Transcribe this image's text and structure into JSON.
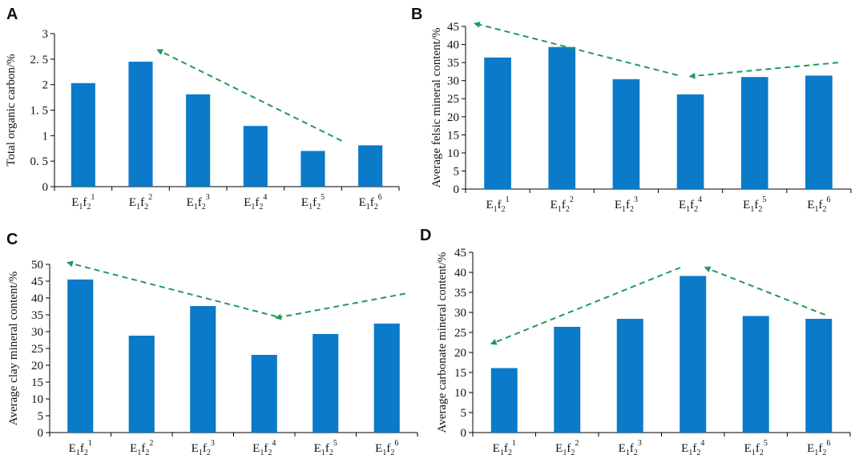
{
  "figure": {
    "panels": [
      "A",
      "B",
      "C",
      "D"
    ]
  },
  "chart_data": [
    {
      "panel": "A",
      "type": "bar",
      "categories": [
        "E1f2^1",
        "E1f2^2",
        "E1f2^3",
        "E1f2^4",
        "E1f2^5",
        "E1f2^6"
      ],
      "values": [
        2.03,
        2.45,
        1.81,
        1.19,
        0.7,
        0.81
      ],
      "title": "",
      "xlabel": "",
      "ylabel": "Total organic carbon/%",
      "ylim": [
        0,
        3
      ],
      "yticks": [
        "0",
        "0. 5",
        "1",
        "1. 5",
        "2",
        "2. 5",
        "3"
      ],
      "ytick_values": [
        0,
        0.5,
        1,
        1.5,
        2,
        2.5,
        3
      ],
      "grid": false,
      "trend_arrows": [
        {
          "from": [
            4.5,
            0.9
          ],
          "to": [
            1.3,
            2.68
          ]
        }
      ],
      "bar_color": "#0a7ac9",
      "trend_color": "#1f9a5a"
    },
    {
      "panel": "B",
      "type": "bar",
      "categories": [
        "E1f2^1",
        "E1f2^2",
        "E1f2^3",
        "E1f2^4",
        "E1f2^5",
        "E1f2^6"
      ],
      "values": [
        36.4,
        39.3,
        30.4,
        26.2,
        31.0,
        31.4
      ],
      "title": "",
      "xlabel": "",
      "ylabel": "Average felsic mineral content/%",
      "ylim": [
        0,
        45
      ],
      "yticks": [
        "0",
        "5",
        "10",
        "15",
        "20",
        "25",
        "30",
        "35",
        "40",
        "45"
      ],
      "ytick_values": [
        0,
        5,
        10,
        15,
        20,
        25,
        30,
        35,
        40,
        45
      ],
      "grid": false,
      "trend_arrows": [
        {
          "from": [
            2.8,
            31.5
          ],
          "to": [
            -0.35,
            45.8
          ]
        },
        {
          "from": [
            5.3,
            35.0
          ],
          "to": [
            3.0,
            31.2
          ]
        }
      ],
      "bar_color": "#0a7ac9",
      "trend_color": "#1f9a5a"
    },
    {
      "panel": "C",
      "type": "bar",
      "categories": [
        "E1f2^1",
        "E1f2^2",
        "E1f2^3",
        "E1f2^4",
        "E1f2^5",
        "E1f2^6"
      ],
      "values": [
        45.5,
        28.8,
        37.6,
        23.1,
        29.3,
        32.4
      ],
      "title": "",
      "xlabel": "",
      "ylabel": "Average clay mineral content/%",
      "ylim": [
        0,
        50
      ],
      "yticks": [
        "0",
        "5",
        "10",
        "15",
        "20",
        "25",
        "30",
        "35",
        "40",
        "45",
        "50"
      ],
      "ytick_values": [
        0,
        5,
        10,
        15,
        20,
        25,
        30,
        35,
        40,
        45,
        50
      ],
      "grid": false,
      "trend_arrows": [
        {
          "from": [
            3.2,
            34.5
          ],
          "to": [
            -0.2,
            50.5
          ]
        },
        {
          "from": [
            5.3,
            41.3
          ],
          "to": [
            3.2,
            34.1
          ]
        }
      ],
      "bar_color": "#0a7ac9",
      "trend_color": "#1f9a5a"
    },
    {
      "panel": "D",
      "type": "bar",
      "categories": [
        "E1f2^1",
        "E1f2^2",
        "E1f2^3",
        "E1f2^4",
        "E1f2^5",
        "E1f2^6"
      ],
      "values": [
        16.1,
        26.4,
        28.4,
        39.1,
        29.1,
        28.4
      ],
      "title": "",
      "xlabel": "",
      "ylabel": "Average carbonate mineral content/%",
      "ylim": [
        0,
        45
      ],
      "yticks": [
        "0",
        "5",
        "10",
        "15",
        "20",
        "25",
        "30",
        "35",
        "40",
        "45"
      ],
      "ytick_values": [
        0,
        5,
        10,
        15,
        20,
        25,
        30,
        35,
        40,
        45
      ],
      "grid": false,
      "trend_arrows": [
        {
          "from": [
            2.8,
            41.2
          ],
          "to": [
            -0.2,
            22.2
          ]
        },
        {
          "from": [
            5.1,
            29.4
          ],
          "to": [
            3.2,
            41.2
          ]
        }
      ],
      "bar_color": "#0a7ac9",
      "trend_color": "#1f9a5a"
    }
  ]
}
